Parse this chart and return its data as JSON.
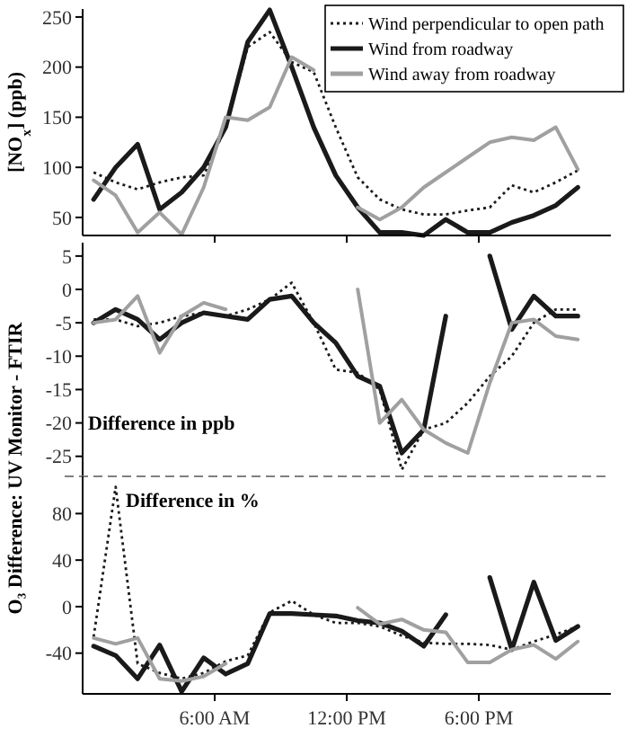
{
  "chart_data": [
    {
      "type": "line",
      "ylabel": "[NO$_{x}$] (ppb)",
      "x": [
        0.5,
        1.5,
        2.5,
        3.5,
        4.5,
        5.5,
        6.5,
        7.5,
        8.5,
        9.5,
        10.5,
        11.5,
        12.5,
        13.5,
        14.5,
        15.5,
        16.5,
        17.5,
        18.5,
        19.5,
        20.5,
        21.5,
        22.5
      ],
      "xlim": [
        0,
        24
      ],
      "xticks": [
        {
          "value": 6,
          "label": null
        },
        {
          "value": 12,
          "label": null
        },
        {
          "value": 18,
          "label": null
        }
      ],
      "ylim": [
        32,
        258
      ],
      "yticks": [
        50,
        100,
        150,
        200,
        250
      ],
      "tick_labels": "y",
      "legend": "top right",
      "series": [
        {
          "name": "Wind perpendicular to open path",
          "color": "#1a1a1a",
          "line_style": "dotted",
          "values": [
            95,
            85,
            78,
            85,
            90,
            92,
            140,
            220,
            235,
            205,
            195,
            140,
            90,
            68,
            58,
            53,
            53,
            57,
            60,
            82,
            75,
            85,
            97
          ]
        },
        {
          "name": "Wind from roadway",
          "color": "#1a1a1a",
          "line_style": "solid",
          "values": [
            68,
            100,
            123,
            58,
            75,
            100,
            140,
            225,
            257,
            200,
            140,
            92,
            60,
            35,
            35,
            32,
            48,
            35,
            35,
            45,
            52,
            62,
            80
          ]
        },
        {
          "name": "Wind away from roadway",
          "color": "#a0a0a0",
          "line_style": "solid",
          "values": [
            87,
            72,
            35,
            55,
            33,
            80,
            150,
            147,
            160,
            210,
            197,
            null,
            60,
            48,
            60,
            80,
            95,
            110,
            125,
            130,
            127,
            140,
            98
          ]
        }
      ]
    },
    {
      "type": "line",
      "ylabel": "O₃ Difference: UV Monitor - FTIR",
      "annotations": [
        "Difference in ppb"
      ],
      "x": [
        0.5,
        1.5,
        2.5,
        3.5,
        4.5,
        5.5,
        6.5,
        7.5,
        8.5,
        9.5,
        10.5,
        11.5,
        12.5,
        13.5,
        14.5,
        15.5,
        16.5,
        17.5,
        18.5,
        19.5,
        20.5,
        21.5,
        22.5
      ],
      "xlim": [
        0,
        24
      ],
      "ylim": [
        -28,
        7
      ],
      "yticks": [
        5,
        0,
        -5,
        -10,
        -15,
        -20,
        -25
      ],
      "tick_labels": "y",
      "series": [
        {
          "color": "#1a1a1a",
          "line_style": "dotted",
          "values": [
            -4.5,
            -4.5,
            -5.5,
            -5,
            -4,
            -3.5,
            -4,
            -3,
            -1.5,
            1,
            -5,
            -12,
            -12.5,
            -15,
            -27,
            -21,
            -20,
            -17,
            -13,
            -10,
            -5,
            -3,
            -3
          ]
        },
        {
          "color": "#1a1a1a",
          "line_style": "solid",
          "values": [
            -5,
            -3,
            -4.5,
            -7.5,
            -5,
            -3.5,
            -4,
            -4.5,
            -1.5,
            -1,
            -5,
            -8,
            -13,
            -14.5,
            -24.5,
            -21,
            -4,
            null,
            5,
            -6,
            -1,
            -4,
            -4
          ]
        },
        {
          "color": "#a0a0a0",
          "line_style": "solid",
          "values": [
            -5,
            -4.5,
            -1,
            -9.5,
            -4,
            -2,
            -3,
            null,
            null,
            null,
            null,
            null,
            0,
            -20,
            -16.5,
            -21,
            -23,
            -24.5,
            -14,
            -5,
            -4.5,
            -7,
            -7.5
          ]
        }
      ]
    },
    {
      "type": "line",
      "annotations": [
        "Difference in %"
      ],
      "x": [
        0.5,
        1.5,
        2.5,
        3.5,
        4.5,
        5.5,
        6.5,
        7.5,
        8.5,
        9.5,
        10.5,
        11.5,
        12.5,
        13.5,
        14.5,
        15.5,
        16.5,
        17.5,
        18.5,
        19.5,
        20.5,
        21.5,
        22.5
      ],
      "xlim": [
        0,
        24
      ],
      "xticks": [
        {
          "value": 6,
          "label": "6:00 AM"
        },
        {
          "value": 12,
          "label": "12:00 PM"
        },
        {
          "value": 18,
          "label": "6:00 PM"
        }
      ],
      "ylim": [
        -75,
        112
      ],
      "yticks": [
        80,
        40,
        0,
        -40
      ],
      "ref_lines": [
        {
          "axis": "y",
          "value": 112,
          "color": "#808080",
          "line_style": "dashed"
        }
      ],
      "series": [
        {
          "color": "#1a1a1a",
          "line_style": "dotted",
          "values": [
            -26,
            103,
            -49,
            -57,
            -62,
            -57,
            -47,
            -42,
            -5,
            5,
            -7,
            -14,
            -14,
            -17,
            -25,
            -31,
            -32,
            -32,
            -33,
            -37,
            -30,
            -24,
            -17
          ]
        },
        {
          "color": "#1a1a1a",
          "line_style": "solid",
          "values": [
            -34,
            -42,
            -62,
            -33,
            -73,
            -44,
            -58,
            -49,
            -6,
            -6,
            -7,
            -8,
            -12,
            -14,
            -21,
            -34,
            -7,
            null,
            25,
            -37,
            21,
            -29,
            -17
          ]
        },
        {
          "color": "#a0a0a0",
          "line_style": "solid",
          "values": [
            -27,
            -32,
            -27,
            -62,
            -64,
            -60,
            -49,
            null,
            null,
            null,
            null,
            null,
            -1,
            -15,
            -11,
            -20,
            -22,
            -48,
            -48,
            -37,
            -33,
            -45,
            -30
          ]
        }
      ]
    }
  ]
}
